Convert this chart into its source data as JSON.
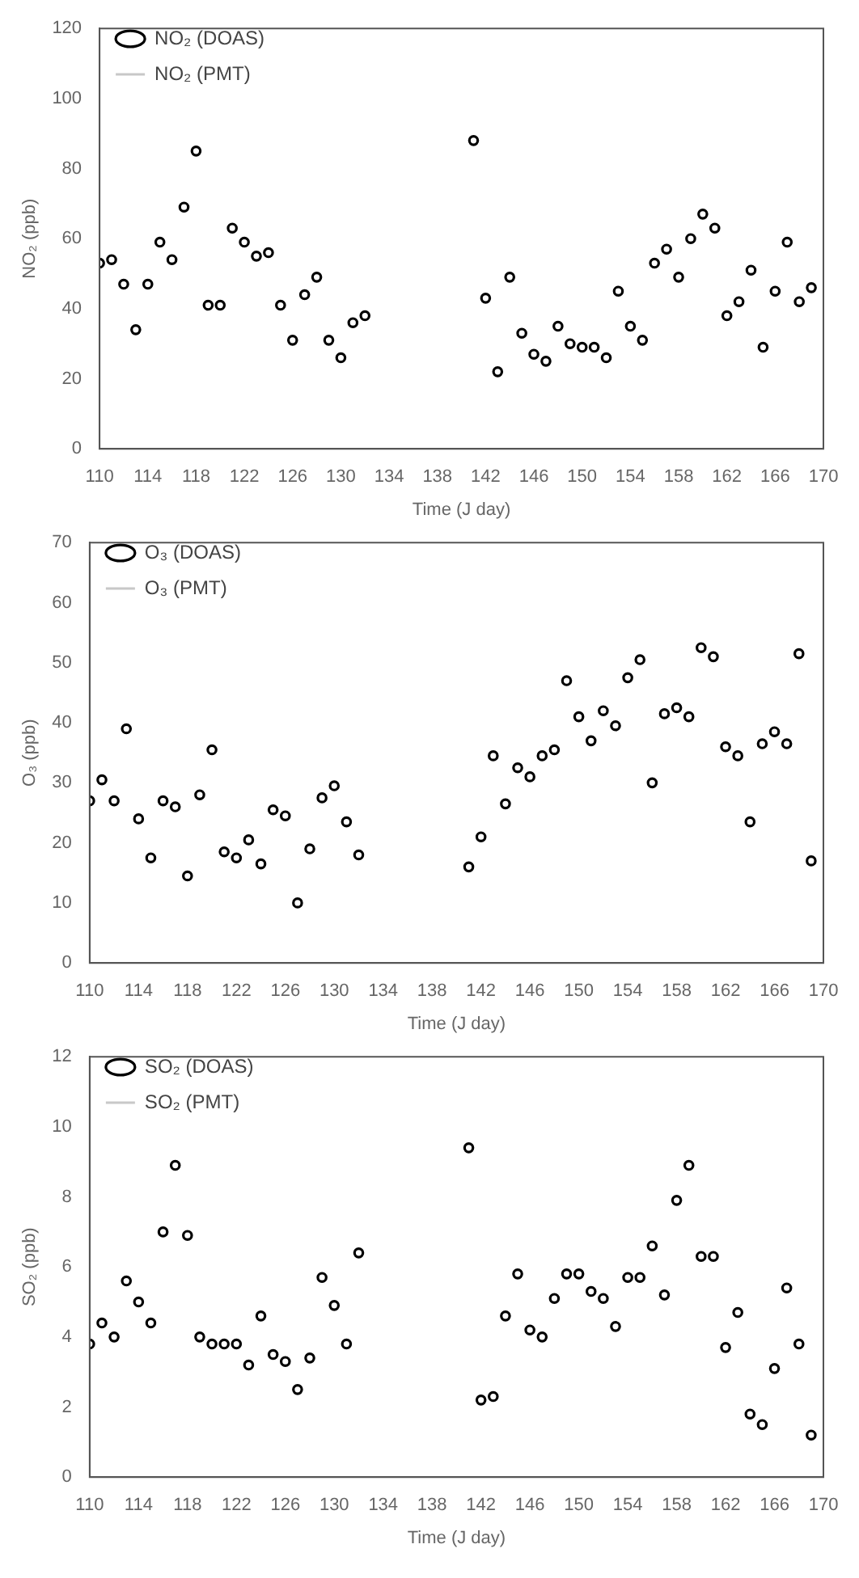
{
  "chart_data": [
    {
      "type": "scatter",
      "xlabel": "Time (J day)",
      "ylabel": "NO₂ (ppb)",
      "x": [
        110,
        111,
        112,
        113,
        114,
        115,
        116,
        117,
        118,
        119,
        120,
        121,
        122,
        123,
        124,
        125,
        126,
        127,
        128,
        129,
        130,
        131,
        132,
        141,
        142,
        143,
        144,
        145,
        146,
        147,
        148,
        149,
        150,
        151,
        152,
        153,
        154,
        155,
        156,
        157,
        158,
        159,
        160,
        161,
        162,
        163,
        164,
        165,
        166,
        167,
        168,
        169
      ],
      "xlim": [
        110,
        170
      ],
      "xticks": [
        110,
        114,
        118,
        122,
        126,
        130,
        134,
        138,
        142,
        146,
        150,
        154,
        158,
        162,
        166,
        170
      ],
      "ylim": [
        0,
        120
      ],
      "yticks": [
        0,
        20,
        40,
        60,
        80,
        100,
        120
      ],
      "grid": false,
      "legend": "top left",
      "marker": "circle",
      "series": [
        {
          "name": "NO₂ (DOAS)",
          "color": "#000000",
          "values": [
            53,
            54,
            47,
            34,
            47,
            59,
            54,
            69,
            85,
            41,
            41,
            63,
            59,
            55,
            56,
            41,
            31,
            44,
            49,
            31,
            26,
            36,
            38,
            88,
            43,
            22,
            49,
            33,
            27,
            25,
            35,
            30,
            29,
            29,
            26,
            45,
            35,
            31,
            53,
            57,
            49,
            60,
            67,
            63,
            38,
            42,
            51,
            29,
            45,
            59,
            42,
            46
          ]
        },
        {
          "name": "NO₂ (PMT)",
          "type": "line",
          "color": "#c8c8c8",
          "values": [
            null,
            null,
            null,
            null,
            null,
            null,
            null,
            null,
            null,
            null,
            null,
            null,
            null,
            null,
            null,
            null,
            null,
            null,
            null,
            null,
            null,
            null,
            null,
            null,
            null,
            null,
            null,
            null,
            null,
            null,
            null,
            null,
            null,
            null,
            null,
            null,
            null,
            null,
            null,
            null,
            null,
            null,
            null,
            null,
            null,
            null,
            null,
            null,
            null,
            null,
            null,
            null
          ]
        }
      ]
    },
    {
      "type": "scatter",
      "xlabel": "Time (J day)",
      "ylabel": "O₃ (ppb)",
      "x": [
        110,
        111,
        112,
        113,
        114,
        115,
        116,
        117,
        118,
        119,
        120,
        121,
        122,
        123,
        124,
        125,
        126,
        127,
        128,
        129,
        130,
        131,
        132,
        141,
        142,
        143,
        144,
        145,
        146,
        147,
        148,
        149,
        150,
        151,
        152,
        153,
        154,
        155,
        156,
        157,
        158,
        159,
        160,
        161,
        162,
        163,
        164,
        165,
        166,
        167,
        168,
        169
      ],
      "xlim": [
        110,
        170
      ],
      "xticks": [
        110,
        114,
        118,
        122,
        126,
        130,
        134,
        138,
        142,
        146,
        150,
        154,
        158,
        162,
        166,
        170
      ],
      "ylim": [
        0,
        70
      ],
      "yticks": [
        0,
        10,
        20,
        30,
        40,
        50,
        60,
        70
      ],
      "grid": false,
      "legend": "top left",
      "marker": "circle",
      "series": [
        {
          "name": "O₃ (DOAS)",
          "color": "#000000",
          "values": [
            27,
            30.5,
            27,
            39,
            24,
            17.5,
            27,
            26,
            14.5,
            28,
            35.5,
            18.5,
            17.5,
            20.5,
            16.5,
            25.5,
            24.5,
            10,
            19,
            27.5,
            29.5,
            23.5,
            18,
            16,
            21,
            34.5,
            26.5,
            32.5,
            31,
            34.5,
            35.5,
            47,
            41,
            37,
            42,
            39.5,
            47.5,
            50.5,
            30,
            41.5,
            42.5,
            41,
            52.5,
            51,
            36,
            34.5,
            23.5,
            36.5,
            38.5,
            36.5,
            51.5,
            17
          ]
        },
        {
          "name": "O₃ (PMT)",
          "type": "line",
          "color": "#c8c8c8",
          "values": [
            null,
            null,
            null,
            null,
            null,
            null,
            null,
            null,
            null,
            null,
            null,
            null,
            null,
            null,
            null,
            null,
            null,
            null,
            null,
            null,
            null,
            null,
            null,
            null,
            null,
            null,
            null,
            null,
            null,
            null,
            null,
            null,
            null,
            null,
            null,
            null,
            null,
            null,
            null,
            null,
            null,
            null,
            null,
            null,
            null,
            null,
            null,
            null,
            null,
            null,
            null,
            null
          ]
        }
      ]
    },
    {
      "type": "scatter",
      "xlabel": "Time (J day)",
      "ylabel": "SO₂ (ppb)",
      "x": [
        110,
        111,
        112,
        113,
        114,
        115,
        116,
        117,
        118,
        119,
        120,
        121,
        122,
        123,
        124,
        125,
        126,
        127,
        128,
        129,
        130,
        131,
        132,
        141,
        142,
        143,
        144,
        145,
        146,
        147,
        148,
        149,
        150,
        151,
        152,
        153,
        154,
        155,
        156,
        157,
        158,
        159,
        160,
        161,
        162,
        163,
        164,
        165,
        166,
        167,
        168,
        169
      ],
      "xlim": [
        110,
        170
      ],
      "xticks": [
        110,
        114,
        118,
        122,
        126,
        130,
        134,
        138,
        142,
        146,
        150,
        154,
        158,
        162,
        166,
        170
      ],
      "ylim": [
        0,
        12
      ],
      "yticks": [
        0,
        2,
        4,
        6,
        8,
        10,
        12
      ],
      "grid": false,
      "legend": "top left",
      "marker": "circle",
      "series": [
        {
          "name": "SO₂ (DOAS)",
          "color": "#000000",
          "values": [
            3.8,
            4.4,
            4.0,
            5.6,
            5.0,
            4.4,
            7.0,
            8.9,
            6.9,
            4.0,
            3.8,
            3.8,
            3.8,
            3.2,
            4.6,
            3.5,
            3.3,
            2.5,
            3.4,
            5.7,
            4.9,
            3.8,
            6.4,
            9.4,
            2.2,
            2.3,
            4.6,
            5.8,
            4.2,
            4.0,
            5.1,
            5.8,
            5.8,
            5.3,
            5.1,
            4.3,
            5.7,
            5.7,
            6.6,
            5.2,
            7.9,
            8.9,
            6.3,
            6.3,
            3.7,
            4.7,
            1.8,
            1.5,
            3.1,
            5.4,
            3.8,
            1.2
          ]
        },
        {
          "name": "SO₂ (PMT)",
          "type": "line",
          "color": "#c8c8c8",
          "values": [
            null,
            null,
            null,
            null,
            null,
            null,
            null,
            null,
            null,
            null,
            null,
            null,
            null,
            null,
            null,
            null,
            null,
            null,
            null,
            null,
            null,
            null,
            null,
            null,
            null,
            null,
            null,
            null,
            null,
            null,
            null,
            null,
            null,
            null,
            null,
            null,
            null,
            null,
            null,
            null,
            null,
            null,
            null,
            null,
            null,
            null,
            null,
            null,
            null,
            null,
            null,
            null
          ]
        }
      ]
    }
  ]
}
